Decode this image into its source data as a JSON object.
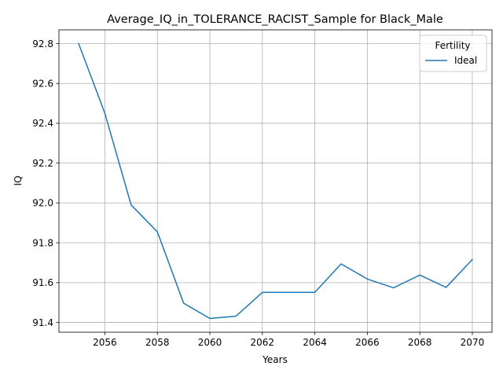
{
  "chart_data": {
    "type": "line",
    "title": "Average_IQ_in_TOLERANCE_RACIST_Sample for Black_Male",
    "xlabel": "Years",
    "ylabel": "IQ",
    "x": [
      2055,
      2056,
      2057,
      2058,
      2059,
      2060,
      2061,
      2062,
      2063,
      2064,
      2065,
      2066,
      2067,
      2068,
      2069,
      2070
    ],
    "series": [
      {
        "name": "Ideal",
        "color": "#1f77b4",
        "values": [
          92.8,
          92.45,
          91.99,
          91.855,
          91.497,
          91.42,
          91.432,
          91.551,
          91.551,
          91.551,
          91.694,
          91.618,
          91.574,
          91.638,
          91.576,
          91.716
        ]
      }
    ],
    "xlim": [
      2054.25,
      2070.75
    ],
    "ylim": [
      91.351,
      92.869
    ],
    "xticks": [
      2056,
      2058,
      2060,
      2062,
      2064,
      2066,
      2068,
      2070
    ],
    "xtick_labels": [
      "2056",
      "2058",
      "2060",
      "2062",
      "2064",
      "2066",
      "2068",
      "2070"
    ],
    "yticks": [
      91.4,
      91.6,
      91.8,
      92.0,
      92.2,
      92.4,
      92.6,
      92.8
    ],
    "ytick_labels": [
      "91.4",
      "91.6",
      "91.8",
      "92.0",
      "92.2",
      "92.4",
      "92.6",
      "92.8"
    ],
    "grid": true,
    "legend": {
      "title": "Fertility",
      "position": "top-right"
    }
  }
}
